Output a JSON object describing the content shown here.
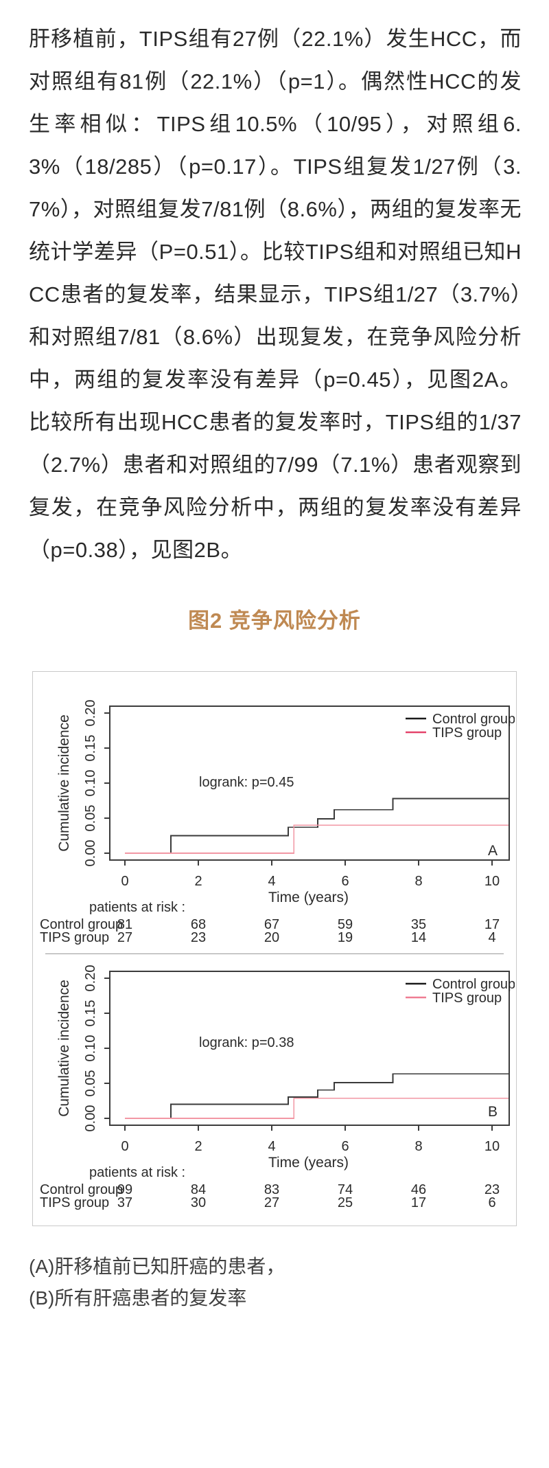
{
  "article": {
    "paragraph": "肝移植前，TIPS组有27例（22.1%）发生HCC，而对照组有81例（22.1%）（p=1）。偶然性HCC的发生率相似：TIPS组10.5%（10/95），对照组6.3%（18/285）（p=0.17）。TIPS组复发1/27例（3.7%），对照组复发7/81例（8.6%），两组的复发率无统计学差异（P=0.51）。比较TIPS组和对照组已知HCC患者的复发率，结果显示，TIPS组1/27（3.7%）和对照组7/81（8.6%）出现复发，在竞争风险分析中，两组的复发率没有差异（p=0.45），见图2A。比较所有出现HCC患者的复发率时，TIPS组的1/37（2.7%）患者和对照组的7/99（7.1%）患者观察到复发，在竞争风险分析中，两组的复发率没有差异（p=0.38），见图2B。"
  },
  "figure": {
    "title": "图2 竞争风险分析",
    "caption_a": "(A)肝移植前已知肝癌的患者，",
    "caption_b": "(B)所有肝癌患者的复发率"
  },
  "colors": {
    "title": "#bf8952",
    "control_line": "#3a3a3a",
    "control_legend": "#1a1a1a",
    "tips_line": "#f297a4",
    "tips_legend": "#e4436a",
    "axis": "#3c3c3c",
    "figure_border": "#c9c9c9"
  },
  "chart_data": [
    {
      "type": "line",
      "panel": "A",
      "xlabel": "Time (years)",
      "ylabel": "Cumulative incidence",
      "annotation": "logrank: p=0.45",
      "xlim": [
        -0.4,
        10.47
      ],
      "ylim": [
        -0.01,
        0.205
      ],
      "xticks": [
        0,
        2,
        4,
        6,
        8,
        10
      ],
      "ytick_labels": [
        "0.00",
        "0.05",
        "0.10",
        "0.15",
        "0.20"
      ],
      "ytick_values": [
        0,
        0.05,
        0.1,
        0.15,
        0.2
      ],
      "grid": false,
      "legend_position": "top-right",
      "legend": [
        {
          "name": "Control group",
          "color": "#1a1a1a"
        },
        {
          "name": "TIPS group",
          "color": "#e4436a"
        }
      ],
      "series": [
        {
          "name": "Control group",
          "color": "#3a3a3a",
          "width": 1.8,
          "x": [
            0,
            1.25,
            4.45,
            5.25,
            5.7,
            7.3
          ],
          "y": [
            0,
            0.025,
            0.037,
            0.049,
            0.062,
            0.078
          ],
          "xend": 10.45
        },
        {
          "name": "TIPS group",
          "color": "#f297a4",
          "width": 1.6,
          "x": [
            0,
            4.6
          ],
          "y": [
            0,
            0.04
          ],
          "xend": 10.45
        }
      ],
      "risk_table": {
        "header": "patients at risk :",
        "times": [
          0,
          2,
          4,
          6,
          8,
          10
        ],
        "rows": [
          {
            "label": "Control group",
            "values": [
              "81",
              "68",
              "67",
              "59",
              "35",
              "17"
            ]
          },
          {
            "label": "TIPS group",
            "values": [
              "27",
              "23",
              "20",
              "19",
              "14",
              "4"
            ]
          }
        ]
      }
    },
    {
      "type": "line",
      "panel": "B",
      "xlabel": "Time (years)",
      "ylabel": "Cumulative incidence",
      "annotation": "logrank: p=0.38",
      "xlim": [
        -0.4,
        10.47
      ],
      "ylim": [
        -0.01,
        0.205
      ],
      "xticks": [
        0,
        2,
        4,
        6,
        8,
        10
      ],
      "ytick_labels": [
        "0.00",
        "0.05",
        "0.10",
        "0.15",
        "0.20"
      ],
      "ytick_values": [
        0,
        0.05,
        0.1,
        0.15,
        0.2
      ],
      "grid": false,
      "legend_position": "top-right",
      "legend": [
        {
          "name": "Control group",
          "color": "#1a1a1a"
        },
        {
          "name": "TIPS group",
          "color": "#ef7d93"
        }
      ],
      "series": [
        {
          "name": "Control group",
          "color": "#3a3a3a",
          "width": 1.8,
          "x": [
            0,
            1.25,
            4.45,
            5.25,
            5.7,
            7.3
          ],
          "y": [
            0,
            0.02,
            0.0305,
            0.0405,
            0.051,
            0.0635
          ],
          "xend": 10.45
        },
        {
          "name": "TIPS group",
          "color": "#f297a4",
          "width": 1.6,
          "x": [
            0,
            4.6
          ],
          "y": [
            0,
            0.0285
          ],
          "xend": 10.45
        }
      ],
      "risk_table": {
        "header": "patients at risk :",
        "times": [
          0,
          2,
          4,
          6,
          8,
          10
        ],
        "rows": [
          {
            "label": "Control group",
            "values": [
              "99",
              "84",
              "83",
              "74",
              "46",
              "23"
            ]
          },
          {
            "label": "TIPS group",
            "values": [
              "37",
              "30",
              "27",
              "25",
              "17",
              "6"
            ]
          }
        ]
      }
    }
  ]
}
